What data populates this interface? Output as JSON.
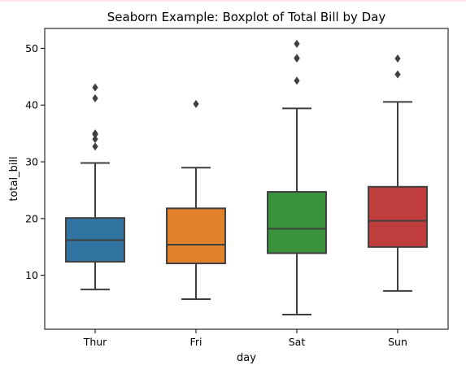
{
  "chart_data": {
    "type": "boxplot",
    "title": "Seaborn Example: Boxplot of Total Bill by Day",
    "xlabel": "day",
    "ylabel": "total_bill",
    "ylim": [
      0.5,
      53.5
    ],
    "yticks": [
      10,
      20,
      30,
      40,
      50
    ],
    "grid": false,
    "legend": "none",
    "categories": [
      "Thur",
      "Fri",
      "Sat",
      "Sun"
    ],
    "boxes": [
      {
        "category": "Thur",
        "color": "#3274a1",
        "whisker_low": 7.5,
        "q1": 12.4,
        "median": 16.2,
        "q3": 20.1,
        "whisker_high": 29.8,
        "outliers": [
          32.7,
          34.0,
          34.8,
          35.0,
          41.2,
          43.1
        ]
      },
      {
        "category": "Fri",
        "color": "#e1812c",
        "whisker_low": 5.8,
        "q1": 12.1,
        "median": 15.4,
        "q3": 21.8,
        "whisker_high": 28.97,
        "outliers": [
          40.2
        ]
      },
      {
        "category": "Sat",
        "color": "#3a923a",
        "whisker_low": 3.07,
        "q1": 13.9,
        "median": 18.2,
        "q3": 24.7,
        "whisker_high": 39.4,
        "outliers": [
          44.3,
          48.2,
          48.3,
          50.8
        ]
      },
      {
        "category": "Sun",
        "color": "#c03d3e",
        "whisker_low": 7.25,
        "q1": 14.99,
        "median": 19.6,
        "q3": 25.6,
        "whisker_high": 40.55,
        "outliers": [
          45.4,
          48.2
        ]
      }
    ]
  }
}
